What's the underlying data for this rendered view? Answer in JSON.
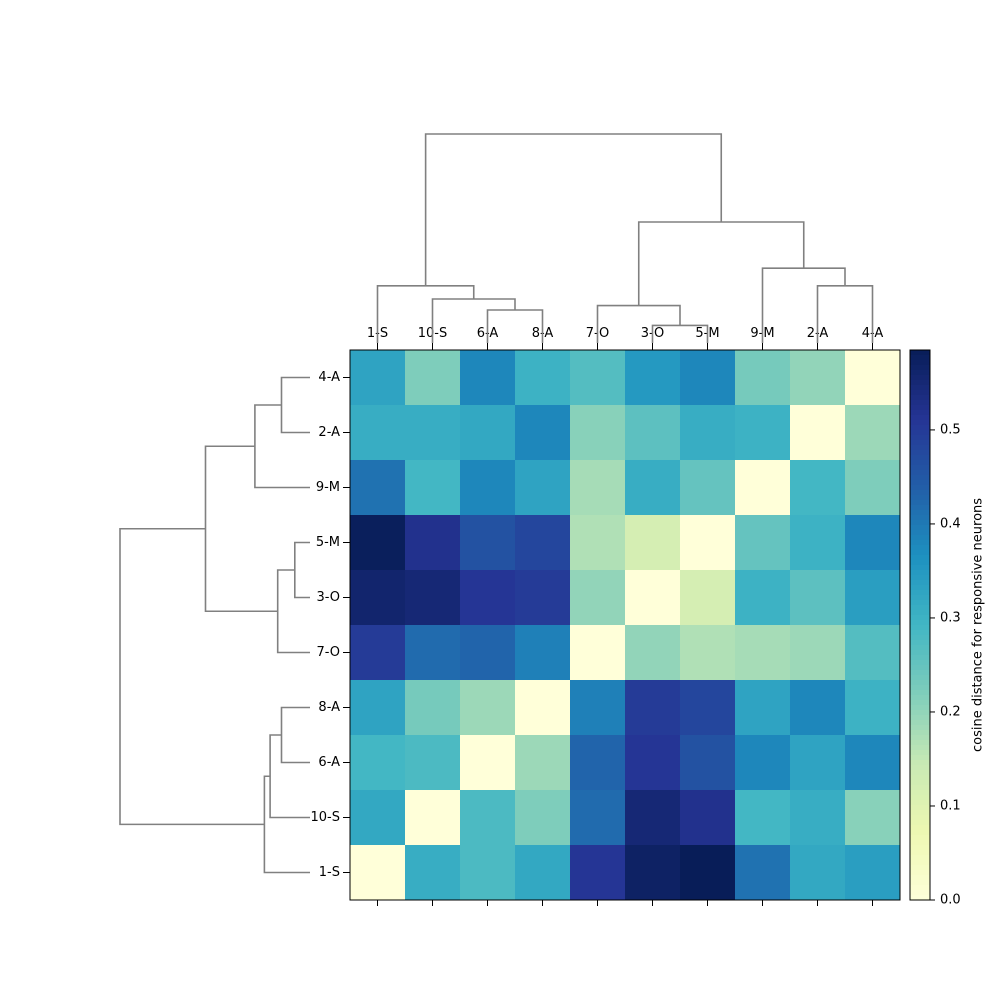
{
  "chart_data": {
    "type": "heatmap",
    "title": "",
    "column_order": [
      "1-S",
      "10-S",
      "6-A",
      "8-A",
      "7-O",
      "3-O",
      "5-M",
      "9-M",
      "2-A",
      "4-A"
    ],
    "row_order": [
      "4-A",
      "2-A",
      "9-M",
      "5-M",
      "3-O",
      "7-O",
      "8-A",
      "6-A",
      "10-S",
      "1-S"
    ],
    "values": [
      [
        0.33,
        0.22,
        0.38,
        0.3,
        0.27,
        0.35,
        0.38,
        0.23,
        0.2,
        0.0
      ],
      [
        0.31,
        0.31,
        0.32,
        0.38,
        0.21,
        0.26,
        0.31,
        0.3,
        0.0,
        0.19
      ],
      [
        0.41,
        0.29,
        0.38,
        0.33,
        0.18,
        0.31,
        0.25,
        0.0,
        0.29,
        0.22
      ],
      [
        0.58,
        0.52,
        0.46,
        0.48,
        0.17,
        0.12,
        0.0,
        0.25,
        0.3,
        0.38
      ],
      [
        0.56,
        0.55,
        0.51,
        0.5,
        0.2,
        0.0,
        0.12,
        0.3,
        0.26,
        0.34
      ],
      [
        0.5,
        0.42,
        0.43,
        0.39,
        0.0,
        0.2,
        0.17,
        0.18,
        0.19,
        0.27
      ],
      [
        0.33,
        0.23,
        0.19,
        0.0,
        0.39,
        0.5,
        0.48,
        0.33,
        0.38,
        0.3
      ],
      [
        0.29,
        0.28,
        0.0,
        0.19,
        0.43,
        0.51,
        0.46,
        0.38,
        0.33,
        0.38
      ],
      [
        0.32,
        0.0,
        0.28,
        0.22,
        0.42,
        0.55,
        0.52,
        0.29,
        0.31,
        0.21
      ],
      [
        0.0,
        0.31,
        0.28,
        0.32,
        0.51,
        0.57,
        0.59,
        0.41,
        0.32,
        0.34
      ]
    ],
    "colormap": "YlGnBu",
    "colorbar": {
      "label": "cosine distance for responsive neurons",
      "ticks": [
        0.0,
        0.1,
        0.2,
        0.3,
        0.4,
        0.5
      ],
      "range": [
        0.0,
        0.585
      ]
    },
    "dendrogram_top": [
      {
        "a": [
          2,
          3
        ],
        "height": 0.15
      },
      {
        "a": [
          1,
          2.5
        ],
        "height": 0.2
      },
      {
        "a": [
          0,
          1.75
        ],
        "height": 0.26
      },
      {
        "a": [
          5,
          6
        ],
        "height": 0.08
      },
      {
        "a": [
          4,
          5.5
        ],
        "height": 0.17
      },
      {
        "a": [
          8,
          9
        ],
        "height": 0.26
      },
      {
        "a": [
          7,
          8.5
        ],
        "height": 0.34
      },
      {
        "a": [
          4.75,
          7.75
        ],
        "height": 0.55
      },
      {
        "a": [
          0.875,
          6.25
        ],
        "height": 0.95
      }
    ],
    "dendrogram_left": [
      {
        "a": [
          0,
          1
        ],
        "height": 0.15
      },
      {
        "a": [
          0.5,
          2
        ],
        "height": 0.29
      },
      {
        "a": [
          3,
          4
        ],
        "height": 0.08
      },
      {
        "a": [
          3.5,
          5
        ],
        "height": 0.17
      },
      {
        "a": [
          1.25,
          4.25
        ],
        "height": 0.55
      },
      {
        "a": [
          6,
          7
        ],
        "height": 0.15
      },
      {
        "a": [
          8,
          6.5
        ],
        "height": 0.21
      },
      {
        "a": [
          9,
          7.25
        ],
        "height": 0.24
      },
      {
        "a": [
          2.75,
          8.125
        ],
        "height": 1.0
      }
    ]
  }
}
